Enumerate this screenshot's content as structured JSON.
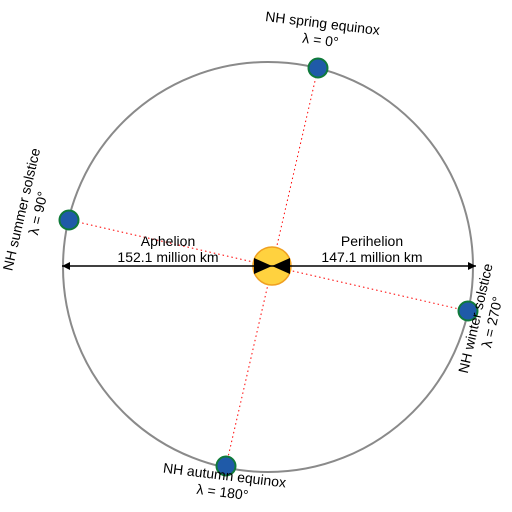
{
  "colors": {
    "orbit": "#8a8a8a",
    "earth_fill": "#1f5aa8",
    "earth_stroke": "#0f7a3a",
    "sun_fill": "#ffd23f",
    "sun_stroke": "#f0a020",
    "season_line": "#ff0000",
    "arrows": "#000000"
  },
  "aphelion": {
    "name": "Aphelion",
    "distance": "152.1 million km"
  },
  "perihelion": {
    "name": "Perihelion",
    "distance": "147.1 million km"
  },
  "points": {
    "spring": {
      "name": "NH spring equinox",
      "lambda": "λ = 0°"
    },
    "summer": {
      "name": "NH summer solstice",
      "lambda": "λ = 90°"
    },
    "autumn": {
      "name": "NH autumn equinox",
      "lambda": "λ = 180°"
    },
    "winter": {
      "name": "NH winter solstice",
      "lambda": "λ = 270°"
    }
  }
}
